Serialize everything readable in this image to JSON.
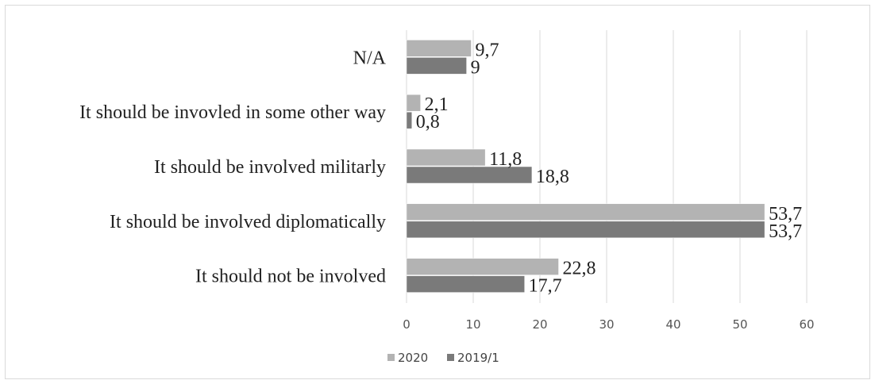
{
  "chart_data": {
    "type": "bar",
    "orientation": "horizontal",
    "categories": [
      "N/A",
      "It should be invovled in some other way",
      "It should be involved militarly",
      "It should be involved diplomatically",
      "It should not be involved"
    ],
    "series": [
      {
        "name": "2020",
        "color": "#b3b3b3",
        "values": [
          9.7,
          2.1,
          11.8,
          53.7,
          22.8
        ],
        "labels": [
          "9,7",
          "2,1",
          "11,8",
          "53,7",
          "22,8"
        ]
      },
      {
        "name": "2019/1",
        "color": "#7a7a7a",
        "values": [
          9,
          0.8,
          18.8,
          53.7,
          17.7
        ],
        "labels": [
          "9",
          "0,8",
          "18,8",
          "53,7",
          "17,7"
        ]
      }
    ],
    "xlim": [
      0,
      60
    ],
    "x_ticks": [
      0,
      10,
      20,
      30,
      40,
      50,
      60
    ],
    "x_tick_labels": [
      "0",
      "10",
      "20",
      "30",
      "40",
      "50",
      "60"
    ],
    "grid": true,
    "legend_position": "bottom-left"
  }
}
